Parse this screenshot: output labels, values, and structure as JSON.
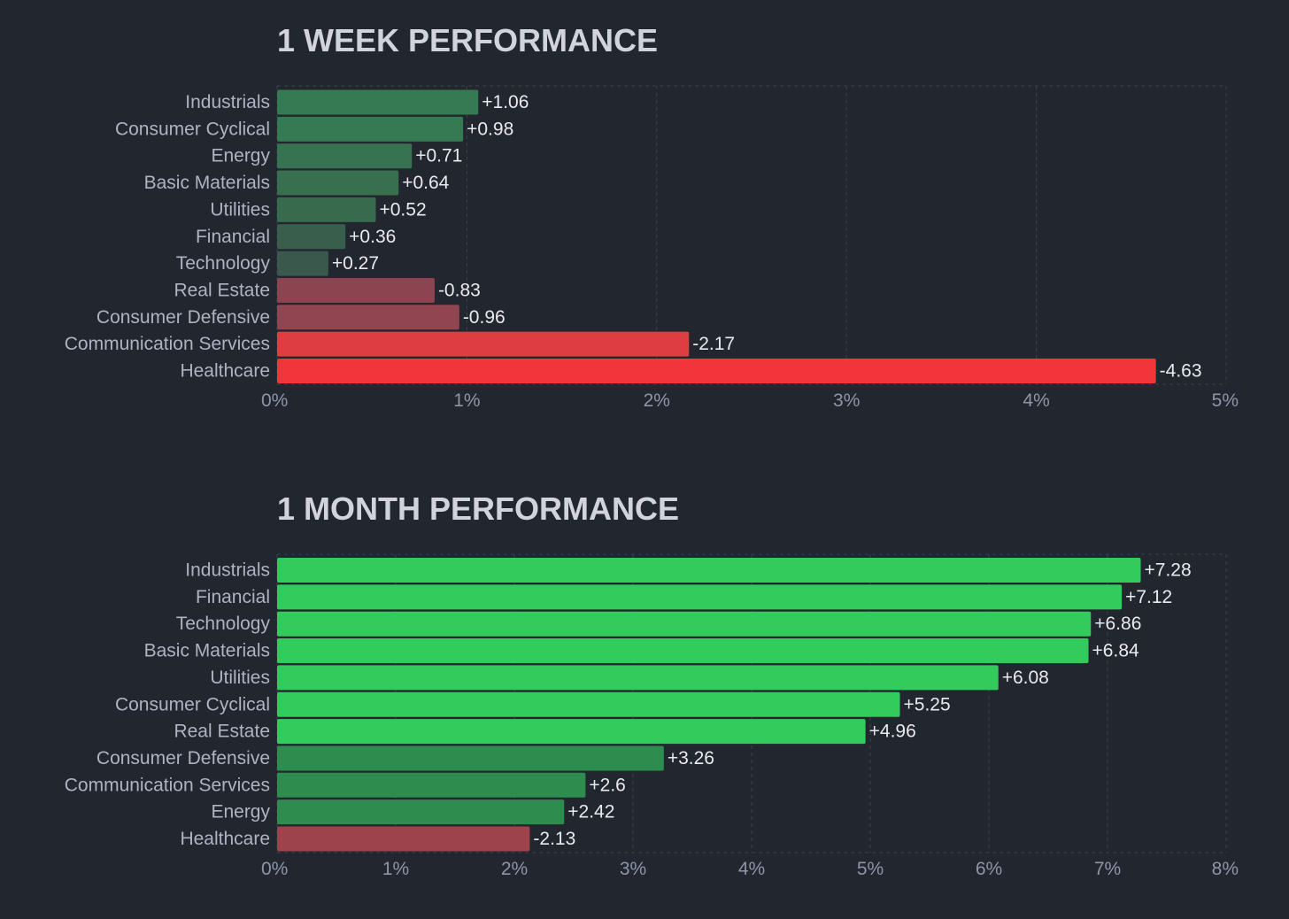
{
  "chart_data": [
    {
      "type": "bar",
      "orientation": "horizontal",
      "title": "1 WEEK PERFORMANCE",
      "categories": [
        "Industrials",
        "Consumer Cyclical",
        "Energy",
        "Basic Materials",
        "Utilities",
        "Financial",
        "Technology",
        "Real Estate",
        "Consumer Defensive",
        "Communication Services",
        "Healthcare"
      ],
      "values": [
        1.06,
        0.98,
        0.71,
        0.64,
        0.52,
        0.36,
        0.27,
        -0.83,
        -0.96,
        -2.17,
        -4.63
      ],
      "value_labels": [
        "+1.06",
        "+0.98",
        "+0.71",
        "+0.64",
        "+0.52",
        "+0.36",
        "+0.27",
        "-0.83",
        "-0.96",
        "-2.17",
        "-4.63"
      ],
      "bar_colors": [
        "#357a52",
        "#357a52",
        "#377350",
        "#376f4f",
        "#386a4e",
        "#3a5e4c",
        "#3b584c",
        "#8c4550",
        "#914550",
        "#de3e42",
        "#f2353b"
      ],
      "scale": "absolute value",
      "xlim": [
        0,
        5
      ],
      "xticks": [
        "0%",
        "1%",
        "2%",
        "3%",
        "4%",
        "5%"
      ],
      "grid": true
    },
    {
      "type": "bar",
      "orientation": "horizontal",
      "title": "1 MONTH PERFORMANCE",
      "categories": [
        "Industrials",
        "Financial",
        "Technology",
        "Basic Materials",
        "Utilities",
        "Consumer Cyclical",
        "Real Estate",
        "Consumer Defensive",
        "Communication Services",
        "Energy",
        "Healthcare"
      ],
      "values": [
        7.28,
        7.12,
        6.86,
        6.84,
        6.08,
        5.25,
        4.96,
        3.26,
        2.6,
        2.42,
        -2.13
      ],
      "value_labels": [
        "+7.28",
        "+7.12",
        "+6.86",
        "+6.84",
        "+6.08",
        "+5.25",
        "+4.96",
        "+3.26",
        "+2.6",
        "+2.42",
        "-2.13"
      ],
      "bar_colors": [
        "#33cc5c",
        "#33cc5c",
        "#33cc5c",
        "#33cc5c",
        "#33cc5c",
        "#33cc5c",
        "#33cc5c",
        "#2e8c4f",
        "#2e8c4f",
        "#2e8c4f",
        "#9c434c"
      ],
      "scale": "absolute value",
      "xlim": [
        0,
        8
      ],
      "xticks": [
        "0%",
        "1%",
        "2%",
        "3%",
        "4%",
        "5%",
        "6%",
        "7%",
        "8%"
      ],
      "grid": true
    }
  ]
}
